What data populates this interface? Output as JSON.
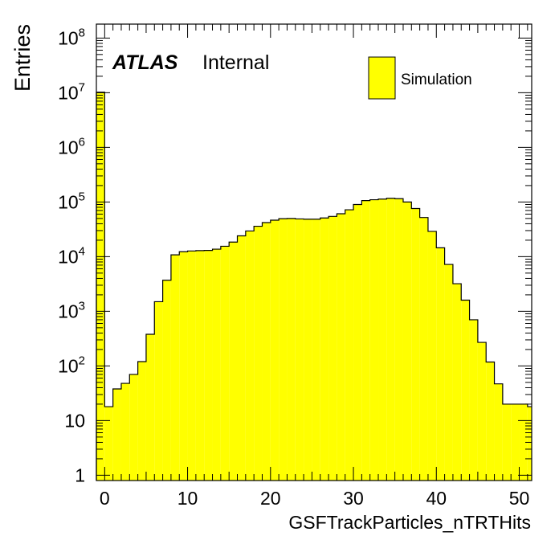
{
  "chart_data": {
    "type": "bar",
    "style": "filled step histogram",
    "ylabel": "Entries",
    "xlabel": "GSFTrackParticles_nTRTHits",
    "y_scale": "log",
    "ylim": [
      0.8,
      180000000
    ],
    "xlim": [
      -1,
      51.5
    ],
    "fill_color": "#ffff00",
    "line_color": "#000000",
    "atlas_label": {
      "bold": "ATLAS",
      "normal": "Internal"
    },
    "legend": {
      "position": "top-right",
      "entries": [
        {
          "label": "Simulation",
          "color": "#ffff00"
        }
      ]
    },
    "x_ticks": [
      {
        "value": 0,
        "label": "0"
      },
      {
        "value": 10,
        "label": "10"
      },
      {
        "value": 20,
        "label": "20"
      },
      {
        "value": 30,
        "label": "30"
      },
      {
        "value": 40,
        "label": "40"
      },
      {
        "value": 50,
        "label": "50"
      }
    ],
    "y_ticks": [
      {
        "value": 1,
        "base": "1",
        "exp": ""
      },
      {
        "value": 10,
        "base": "10",
        "exp": ""
      },
      {
        "value": 100,
        "base": "10",
        "exp": "2"
      },
      {
        "value": 1000,
        "base": "10",
        "exp": "3"
      },
      {
        "value": 10000,
        "base": "10",
        "exp": "4"
      },
      {
        "value": 100000,
        "base": "10",
        "exp": "5"
      },
      {
        "value": 1000000,
        "base": "10",
        "exp": "6"
      },
      {
        "value": 10000000,
        "base": "10",
        "exp": "7"
      },
      {
        "value": 100000000,
        "base": "10",
        "exp": "8"
      }
    ],
    "bin_edges": [
      -1,
      0,
      1,
      2,
      3,
      4,
      5,
      6,
      7,
      8,
      9,
      10,
      11,
      12,
      13,
      14,
      15,
      16,
      17,
      18,
      19,
      20,
      21,
      22,
      23,
      24,
      25,
      26,
      27,
      28,
      29,
      30,
      31,
      32,
      33,
      34,
      35,
      36,
      37,
      38,
      39,
      40,
      41,
      42,
      43,
      44,
      45,
      46,
      47,
      48,
      49,
      50,
      51,
      52
    ],
    "values": [
      10200000,
      18,
      38,
      48,
      70,
      120,
      380,
      1500,
      3700,
      10800,
      12300,
      12700,
      12900,
      13000,
      13700,
      15500,
      18500,
      24000,
      29500,
      36000,
      42000,
      46500,
      49500,
      50000,
      49000,
      48500,
      48500,
      51000,
      54500,
      61000,
      72000,
      90000,
      106000,
      110000,
      113000,
      117000,
      115000,
      100000,
      76000,
      52000,
      29000,
      14500,
      7200,
      3200,
      1600,
      700,
      270,
      118,
      47,
      20,
      20,
      20,
      18
    ]
  }
}
